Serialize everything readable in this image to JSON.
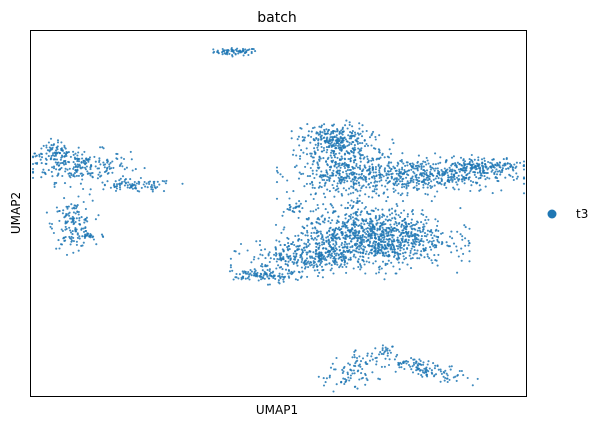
{
  "chart_data": {
    "type": "scatter",
    "title": "batch",
    "xlabel": "UMAP1",
    "ylabel": "UMAP2",
    "xticks": false,
    "yticks": false,
    "grid": false,
    "legend_position": "right",
    "xlim": [
      0,
      100
    ],
    "ylim": [
      0,
      100
    ],
    "series": [
      {
        "name": "t3",
        "color": "#1f77b4",
        "clusters": [
          {
            "label": "top-small",
            "cx": 41.4,
            "cy": 94.2,
            "sx": 2.2,
            "sy": 0.5,
            "n": 70
          },
          {
            "label": "left-upper-band",
            "cx": 10.0,
            "cy": 63.0,
            "sx": 5.0,
            "sy": 2.2,
            "n": 220
          },
          {
            "label": "left-upper-head",
            "cx": 5.0,
            "cy": 66.5,
            "sx": 2.0,
            "sy": 1.5,
            "n": 80
          },
          {
            "label": "left-upper-tail",
            "cx": 21.0,
            "cy": 57.5,
            "sx": 4.0,
            "sy": 0.9,
            "n": 90
          },
          {
            "label": "left-lower",
            "cx": 8.5,
            "cy": 47.0,
            "sx": 2.0,
            "sy": 3.2,
            "n": 140
          },
          {
            "label": "left-lower-tail",
            "cx": 11.5,
            "cy": 43.8,
            "sx": 1.8,
            "sy": 0.5,
            "n": 25
          },
          {
            "label": "center-top-dense",
            "cx": 61.5,
            "cy": 70.0,
            "sx": 3.4,
            "sy": 2.3,
            "n": 280
          },
          {
            "label": "center-upper",
            "cx": 64.0,
            "cy": 61.0,
            "sx": 5.5,
            "sy": 4.0,
            "n": 400
          },
          {
            "label": "right-arm",
            "cx": 79.0,
            "cy": 60.5,
            "sx": 8.5,
            "sy": 2.3,
            "n": 500
          },
          {
            "label": "right-tip",
            "cx": 91.0,
            "cy": 63.0,
            "sx": 4.0,
            "sy": 1.2,
            "n": 160
          },
          {
            "label": "center-main-dense",
            "cx": 69.0,
            "cy": 43.5,
            "sx": 7.5,
            "sy": 3.8,
            "n": 1100
          },
          {
            "label": "center-lower-left",
            "cx": 56.0,
            "cy": 38.0,
            "sx": 6.0,
            "sy": 2.3,
            "n": 320
          },
          {
            "label": "center-lower-tail",
            "cx": 47.0,
            "cy": 33.0,
            "sx": 3.0,
            "sy": 1.0,
            "n": 110
          },
          {
            "label": "center-small-strand",
            "cx": 53.0,
            "cy": 51.5,
            "sx": 1.0,
            "sy": 0.6,
            "n": 22
          },
          {
            "label": "bottom-left-arm",
            "cx": 66.0,
            "cy": 7.5,
            "sx": 3.6,
            "sy": 2.0,
            "n": 100,
            "angle": 35
          },
          {
            "label": "bottom-right-arm",
            "cx": 80.0,
            "cy": 7.5,
            "sx": 4.4,
            "sy": 1.1,
            "n": 120,
            "angle": -17
          },
          {
            "label": "bottom-center-bit",
            "cx": 71.5,
            "cy": 12.5,
            "sx": 0.8,
            "sy": 0.6,
            "n": 15
          }
        ]
      }
    ]
  }
}
